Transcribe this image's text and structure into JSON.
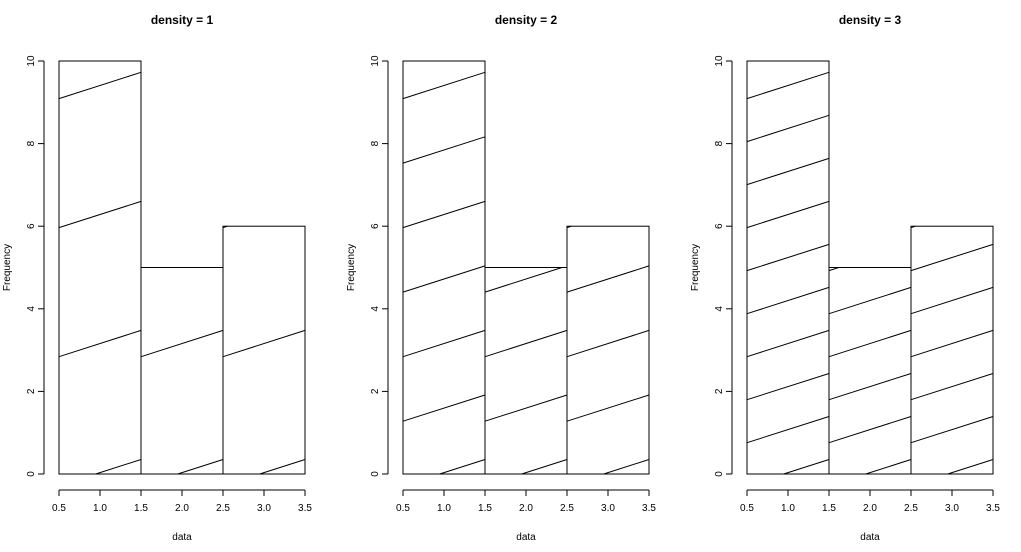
{
  "chart_data": [
    {
      "type": "bar",
      "title": "density = 1",
      "xlabel": "data",
      "ylabel": "Frequency",
      "bins": [
        [
          0.5,
          1.5
        ],
        [
          1.5,
          2.5
        ],
        [
          2.5,
          3.5
        ]
      ],
      "values": [
        10,
        5,
        6
      ],
      "xlim": [
        0.5,
        3.5
      ],
      "ylim": [
        0,
        10
      ],
      "xticks": [
        "0.5",
        "1.0",
        "1.5",
        "2.0",
        "2.5",
        "3.0",
        "3.5"
      ],
      "yticks": [
        "0",
        "2",
        "4",
        "6",
        "8",
        "10"
      ],
      "hatch_density": 1,
      "hatch_angle": 45,
      "grid": false
    },
    {
      "type": "bar",
      "title": "density = 2",
      "xlabel": "data",
      "ylabel": "Frequency",
      "bins": [
        [
          0.5,
          1.5
        ],
        [
          1.5,
          2.5
        ],
        [
          2.5,
          3.5
        ]
      ],
      "values": [
        10,
        5,
        6
      ],
      "xlim": [
        0.5,
        3.5
      ],
      "ylim": [
        0,
        10
      ],
      "xticks": [
        "0.5",
        "1.0",
        "1.5",
        "2.0",
        "2.5",
        "3.0",
        "3.5"
      ],
      "yticks": [
        "0",
        "2",
        "4",
        "6",
        "8",
        "10"
      ],
      "hatch_density": 2,
      "hatch_angle": 45,
      "grid": false
    },
    {
      "type": "bar",
      "title": "density = 3",
      "xlabel": "data",
      "ylabel": "Frequency",
      "bins": [
        [
          0.5,
          1.5
        ],
        [
          1.5,
          2.5
        ],
        [
          2.5,
          3.5
        ]
      ],
      "values": [
        10,
        5,
        6
      ],
      "xlim": [
        0.5,
        3.5
      ],
      "ylim": [
        0,
        10
      ],
      "xticks": [
        "0.5",
        "1.0",
        "1.5",
        "2.0",
        "2.5",
        "3.0",
        "3.5"
      ],
      "yticks": [
        "0",
        "2",
        "4",
        "6",
        "8",
        "10"
      ],
      "hatch_density": 3,
      "hatch_angle": 45,
      "grid": false
    }
  ]
}
